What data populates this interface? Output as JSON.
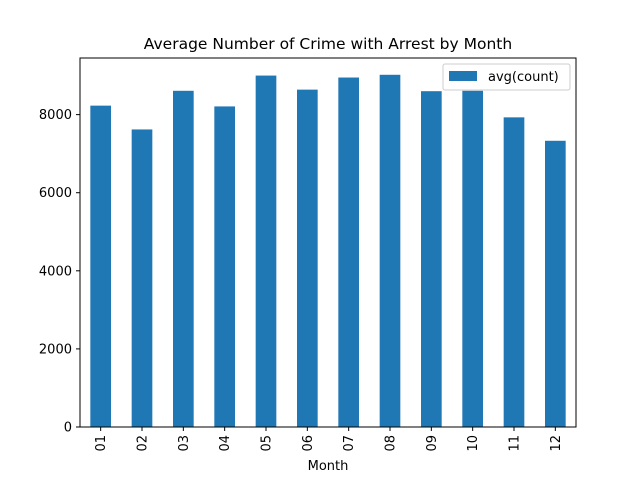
{
  "chart_data": {
    "type": "bar",
    "title": "Average Number of Crime with Arrest by Month",
    "xlabel": "Month",
    "ylabel": "",
    "categories": [
      "01",
      "02",
      "03",
      "04",
      "05",
      "06",
      "07",
      "08",
      "09",
      "10",
      "11",
      "12"
    ],
    "series": [
      {
        "name": "avg(count)",
        "color": "#1f77b4",
        "values": [
          8230,
          7620,
          8610,
          8210,
          9000,
          8640,
          8950,
          9020,
          8600,
          8610,
          7930,
          7330
        ]
      }
    ],
    "ylim": [
      0,
      9450
    ],
    "yticks": [
      0,
      2000,
      4000,
      6000,
      8000
    ],
    "grid": false,
    "legend_position": "top-right"
  }
}
